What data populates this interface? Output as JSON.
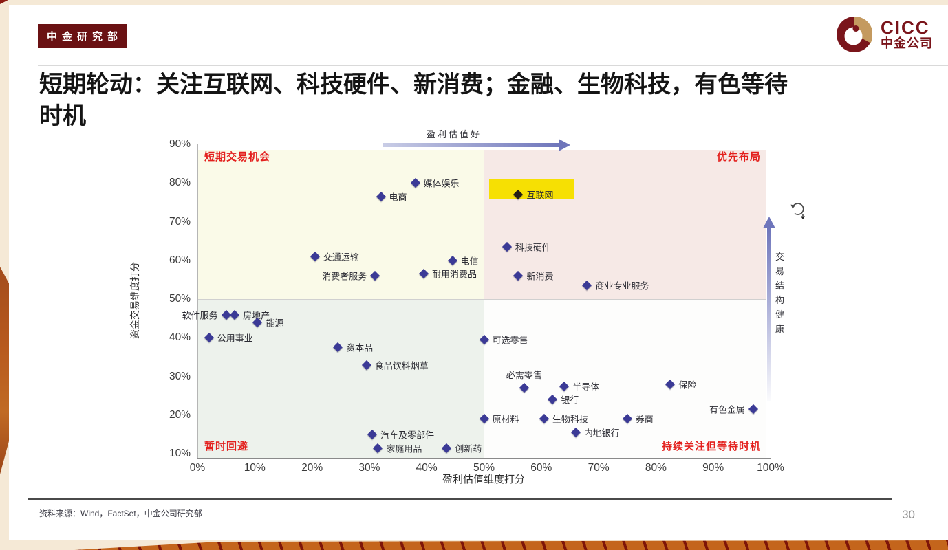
{
  "header": {
    "badge": "中金研究部",
    "logo_text": "CICC",
    "logo_subtext": "中金公司"
  },
  "title": "短期轮动：关注互联网、科技硬件、新消费；金融、生物科技，有色等待\n时机",
  "footer": {
    "source": "资料来源：Wind，FactSet，中金公司研究部",
    "page_number": "30"
  },
  "chart_data": {
    "type": "scatter",
    "xlabel": "盈利估值维度打分",
    "ylabel": "资金交易维度打分",
    "xlim": [
      0,
      100
    ],
    "ylim": [
      10,
      90
    ],
    "x_ticks": [
      "0%",
      "10%",
      "20%",
      "30%",
      "40%",
      "50%",
      "60%",
      "70%",
      "80%",
      "90%",
      "100%"
    ],
    "y_ticks": [
      "90%",
      "80%",
      "70%",
      "60%",
      "50%",
      "40%",
      "30%",
      "20%",
      "10%"
    ],
    "top_arrow_label": "盈利估值好",
    "right_arrow_label": "交易结构健康",
    "quadrant_labels": {
      "top_left": "短期交易机会",
      "top_right": "优先布局",
      "bottom_left": "暂时回避",
      "bottom_right": "持续关注但等待时机"
    },
    "colors": {
      "point": "#3b3a96",
      "highlight_fill": "#f6e003",
      "highlight_point": "#241f16",
      "quad_tl": "#fafae8",
      "quad_tr": "#f6e9e6",
      "quad_bl": "#edf2ec",
      "quad_br": "#fdfdfc",
      "quadrant_label_red": "#e3201d"
    },
    "points": [
      {
        "label": "媒体娱乐",
        "x": 38,
        "y": 80,
        "side": "right"
      },
      {
        "label": "电商",
        "x": 32,
        "y": 76.5,
        "side": "right"
      },
      {
        "label": "互联网",
        "x": 56,
        "y": 77,
        "side": "right",
        "highlight": true
      },
      {
        "label": "科技硬件",
        "x": 54,
        "y": 63.5,
        "side": "right"
      },
      {
        "label": "电信",
        "x": 44.5,
        "y": 60,
        "side": "right"
      },
      {
        "label": "交通运输",
        "x": 20.5,
        "y": 61,
        "side": "right"
      },
      {
        "label": "消费者服务",
        "x": 31,
        "y": 56,
        "side": "left"
      },
      {
        "label": "耐用消费品",
        "x": 39.5,
        "y": 56.5,
        "side": "right"
      },
      {
        "label": "新消费",
        "x": 56,
        "y": 56,
        "side": "right"
      },
      {
        "label": "商业专业服务",
        "x": 68,
        "y": 53.5,
        "side": "right"
      },
      {
        "label": "软件服务",
        "x": 5,
        "y": 46,
        "side": "left"
      },
      {
        "label": "房地产",
        "x": 6.5,
        "y": 46,
        "side": "right"
      },
      {
        "label": "能源",
        "x": 10.5,
        "y": 44,
        "side": "right"
      },
      {
        "label": "公用事业",
        "x": 2,
        "y": 40,
        "side": "right"
      },
      {
        "label": "资本品",
        "x": 24.5,
        "y": 37.5,
        "side": "right"
      },
      {
        "label": "可选零售",
        "x": 50,
        "y": 39.5,
        "side": "right"
      },
      {
        "label": "食品饮料烟草",
        "x": 29.5,
        "y": 33,
        "side": "right"
      },
      {
        "label": "必需零售",
        "x": 57,
        "y": 27,
        "side": "above"
      },
      {
        "label": "半导体",
        "x": 64,
        "y": 27.5,
        "side": "right"
      },
      {
        "label": "保险",
        "x": 82.5,
        "y": 28,
        "side": "right"
      },
      {
        "label": "银行",
        "x": 62,
        "y": 24,
        "side": "right"
      },
      {
        "label": "有色金属",
        "x": 97,
        "y": 21.5,
        "side": "left"
      },
      {
        "label": "原材料",
        "x": 50,
        "y": 19,
        "side": "right"
      },
      {
        "label": "生物科技",
        "x": 60.5,
        "y": 19,
        "side": "right"
      },
      {
        "label": "券商",
        "x": 75,
        "y": 19,
        "side": "right"
      },
      {
        "label": "内地银行",
        "x": 66,
        "y": 15.5,
        "side": "right"
      },
      {
        "label": "汽车及零部件",
        "x": 30.5,
        "y": 15,
        "side": "right"
      },
      {
        "label": "家庭用品",
        "x": 31.5,
        "y": 11.5,
        "side": "right"
      },
      {
        "label": "创新药",
        "x": 43.5,
        "y": 11.5,
        "side": "right"
      }
    ]
  }
}
